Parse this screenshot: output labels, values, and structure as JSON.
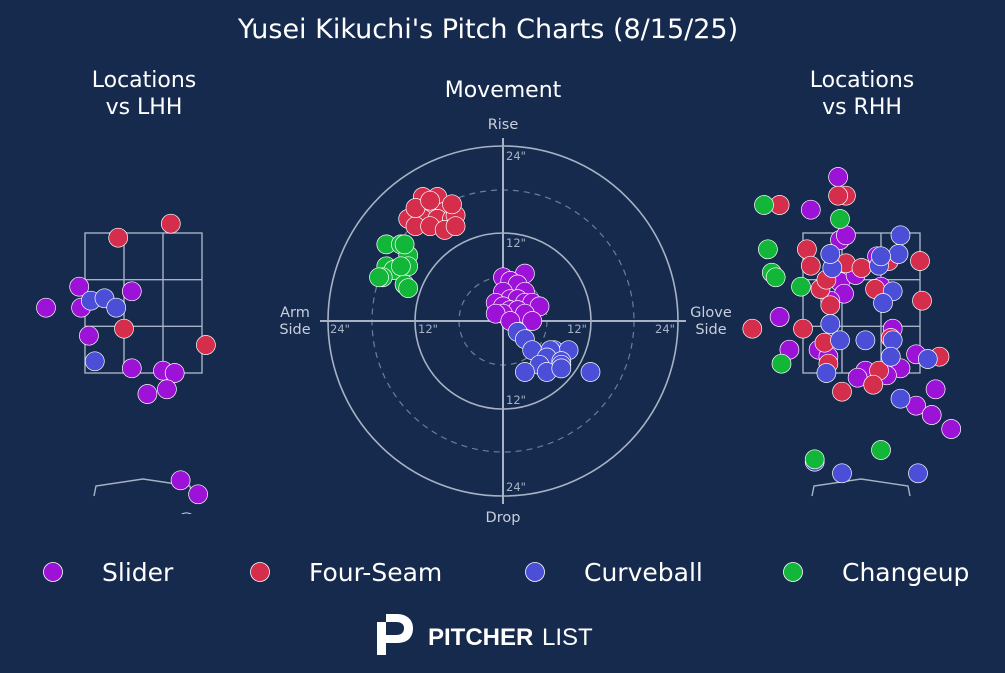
{
  "title": "Yusei Kikuchi's Pitch Charts (8/15/25)",
  "colors": {
    "background": "#152a4c",
    "Slider": "#9c12d6",
    "Four-Seam": "#d42e4c",
    "Curveball": "#4b4fd7",
    "Changeup": "#12b73a"
  },
  "panels": {
    "lhh_title": [
      "Locations",
      "vs LHH"
    ],
    "movement_title": "Movement",
    "rhh_title": [
      "Locations",
      "vs RHH"
    ]
  },
  "movement_axes": {
    "top": "Rise",
    "bottom": "Drop",
    "left": [
      "Arm",
      "Side"
    ],
    "right": [
      "Glove",
      "Side"
    ]
  },
  "movement_ring_labels": {
    "top_24": "24\"",
    "top_12": "12\"",
    "bottom_12": "12\"",
    "bottom_24": "24\"",
    "left_24": "24\"",
    "left_12": "12\"",
    "right_12": "12\"",
    "right_24": "24\""
  },
  "legend": [
    {
      "name": "Slider",
      "color": "#9c12d6"
    },
    {
      "name": "Four-Seam",
      "color": "#d42e4c"
    },
    {
      "name": "Curveball",
      "color": "#4b4fd7"
    },
    {
      "name": "Changeup",
      "color": "#12b73a"
    }
  ],
  "brand": {
    "bold": "PITCHER",
    "light": "LIST"
  },
  "chart_data": [
    {
      "type": "scatter",
      "title": "Movement",
      "units": "inches",
      "xlabel": "Arm Side / Glove Side",
      "ylabel": "Drop / Rise",
      "xlim": [
        -24,
        24
      ],
      "ylim": [
        -24,
        24
      ],
      "series": [
        {
          "name": "Four-Seam",
          "points": [
            [
              -11,
              17
            ],
            [
              -9,
              17
            ],
            [
              -12,
              15
            ],
            [
              -10,
              15
            ],
            [
              -8,
              15
            ],
            [
              -13,
              14
            ],
            [
              -11,
              14
            ],
            [
              -9,
              14
            ],
            [
              -7,
              14
            ],
            [
              -12,
              13
            ],
            [
              -10,
              13
            ],
            [
              -8,
              12.5
            ],
            [
              -6.5,
              14.5
            ],
            [
              -7,
              16
            ],
            [
              -12,
              15.5
            ],
            [
              -10,
              16.5
            ],
            [
              -6.5,
              13
            ]
          ]
        },
        {
          "name": "Changeup",
          "points": [
            [
              -16,
              10.5
            ],
            [
              -14,
              10.5
            ],
            [
              -13,
              9
            ],
            [
              -16,
              7.5
            ],
            [
              -13,
              7.5
            ],
            [
              -15,
              7
            ],
            [
              -16.5,
              6
            ],
            [
              -17,
              6
            ],
            [
              -13.5,
              5
            ],
            [
              -13,
              4.5
            ],
            [
              -14,
              7.5
            ],
            [
              -13.5,
              10.5
            ],
            [
              0,
              1
            ]
          ]
        },
        {
          "name": "Slider",
          "points": [
            [
              3,
              6.5
            ],
            [
              0,
              6
            ],
            [
              1,
              5.5
            ],
            [
              2,
              5
            ],
            [
              3,
              4
            ],
            [
              0,
              4
            ],
            [
              1,
              3
            ],
            [
              2,
              3
            ],
            [
              3,
              2.5
            ],
            [
              4,
              2.5
            ],
            [
              5,
              2
            ],
            [
              -1,
              2.5
            ],
            [
              0,
              2
            ],
            [
              1,
              1.5
            ],
            [
              2,
              1.5
            ],
            [
              3,
              1
            ],
            [
              0,
              1
            ],
            [
              -1,
              1
            ],
            [
              1,
              0
            ],
            [
              4,
              0
            ]
          ]
        },
        {
          "name": "Curveball",
          "points": [
            [
              2,
              -1.5
            ],
            [
              3,
              -2.5
            ],
            [
              4,
              -4
            ],
            [
              7,
              -4
            ],
            [
              9,
              -4
            ],
            [
              6.5,
              -4
            ],
            [
              6,
              -5
            ],
            [
              8,
              -5.5
            ],
            [
              8,
              -6
            ],
            [
              5,
              -6
            ],
            [
              6,
              -7
            ],
            [
              3,
              -7
            ],
            [
              12,
              -7
            ],
            [
              8,
              -6.5
            ]
          ]
        }
      ]
    },
    {
      "type": "scatter",
      "title": "Locations vs LHH",
      "units": "strike-zone cells (x: 0=left edge,3=right edge; y: 0=top,3=bottom)",
      "xlim": [
        -1.5,
        4.5
      ],
      "ylim": [
        -0.5,
        6
      ],
      "series": [
        {
          "name": "Slider",
          "points": [
            [
              -1,
              1.6
            ],
            [
              -0.1,
              1.6
            ],
            [
              -0.15,
              1.15
            ],
            [
              1.2,
              1.25
            ],
            [
              0.1,
              2.2
            ],
            [
              1.2,
              2.9
            ],
            [
              2.0,
              2.95
            ],
            [
              2.3,
              3.0
            ],
            [
              2.1,
              3.35
            ],
            [
              1.6,
              3.45
            ],
            [
              2.45,
              5.3
            ],
            [
              2.9,
              5.6
            ],
            [
              2.6,
              6.2
            ]
          ]
        },
        {
          "name": "Four-Seam",
          "points": [
            [
              0.85,
              0.1
            ],
            [
              2.2,
              -0.2
            ],
            [
              1.0,
              2.05
            ],
            [
              3.1,
              2.4
            ]
          ]
        },
        {
          "name": "Curveball",
          "points": [
            [
              0.15,
              1.45
            ],
            [
              0.5,
              1.4
            ],
            [
              0.8,
              1.6
            ],
            [
              0.25,
              2.75
            ]
          ]
        }
      ]
    },
    {
      "type": "scatter",
      "title": "Locations vs RHH",
      "units": "strike-zone cells (x: 0=left edge,3=right edge; y: 0=top,3=bottom)",
      "xlim": [
        -1.5,
        4.5
      ],
      "ylim": [
        -1.5,
        5
      ],
      "series": [
        {
          "name": "Slider",
          "points": [
            [
              0.9,
              -1.2
            ],
            [
              0.2,
              -0.5
            ],
            [
              0.95,
              0.15
            ],
            [
              1.1,
              0.05
            ],
            [
              0.95,
              1.05
            ],
            [
              2.0,
              1.15
            ],
            [
              1.35,
              0.9
            ],
            [
              1.05,
              1.3
            ],
            [
              0.7,
              1.45
            ],
            [
              -0.6,
              1.8
            ],
            [
              -0.35,
              2.5
            ],
            [
              0.4,
              2.5
            ],
            [
              0.65,
              2.65
            ],
            [
              2.3,
              2.05
            ],
            [
              2.9,
              2.6
            ],
            [
              2.5,
              2.9
            ],
            [
              1.6,
              2.95
            ],
            [
              2.15,
              3.05
            ],
            [
              3.4,
              3.35
            ],
            [
              2.9,
              3.7
            ],
            [
              3.3,
              3.9
            ],
            [
              3.8,
              4.2
            ],
            [
              1.9,
              0.5
            ],
            [
              1.4,
              3.1
            ]
          ]
        },
        {
          "name": "Four-Seam",
          "points": [
            [
              -0.6,
              -0.6
            ],
            [
              0.1,
              0.35
            ],
            [
              1.1,
              0.65
            ],
            [
              0.2,
              0.7
            ],
            [
              0.45,
              1.2
            ],
            [
              0.7,
              1.55
            ],
            [
              0.6,
              1.0
            ],
            [
              1.5,
              0.75
            ],
            [
              2.2,
              0.6
            ],
            [
              3.0,
              0.6
            ],
            [
              3.05,
              1.45
            ],
            [
              3.5,
              2.65
            ],
            [
              2.25,
              2.25
            ],
            [
              0.0,
              2.05
            ],
            [
              -1.3,
              2.05
            ],
            [
              0.55,
              2.35
            ],
            [
              0.65,
              2.8
            ],
            [
              1.95,
              2.95
            ],
            [
              1.8,
              3.25
            ],
            [
              1.0,
              3.4
            ],
            [
              1.85,
              1.2
            ],
            [
              1.1,
              -0.8
            ],
            [
              0.9,
              -0.8
            ]
          ]
        },
        {
          "name": "Curveball",
          "points": [
            [
              2.5,
              0.05
            ],
            [
              2.45,
              0.45
            ],
            [
              0.75,
              0.75
            ],
            [
              1.95,
              0.7
            ],
            [
              2.0,
              0.5
            ],
            [
              0.7,
              0.45
            ],
            [
              2.3,
              1.25
            ],
            [
              2.05,
              1.5
            ],
            [
              0.7,
              1.95
            ],
            [
              0.95,
              2.3
            ],
            [
              1.6,
              2.3
            ],
            [
              2.3,
              2.3
            ],
            [
              2.25,
              2.65
            ],
            [
              3.2,
              2.7
            ],
            [
              0.6,
              3.0
            ],
            [
              2.5,
              3.55
            ],
            [
              0.3,
              4.9
            ],
            [
              1.0,
              5.15
            ],
            [
              2.95,
              5.15
            ]
          ]
        },
        {
          "name": "Changeup",
          "points": [
            [
              -1.0,
              -0.6
            ],
            [
              0.95,
              -0.3
            ],
            [
              -0.9,
              0.35
            ],
            [
              -0.8,
              0.85
            ],
            [
              -0.7,
              0.95
            ],
            [
              -0.05,
              1.15
            ],
            [
              -0.55,
              2.8
            ],
            [
              0.3,
              4.85
            ],
            [
              2.0,
              4.65
            ]
          ]
        }
      ]
    }
  ]
}
